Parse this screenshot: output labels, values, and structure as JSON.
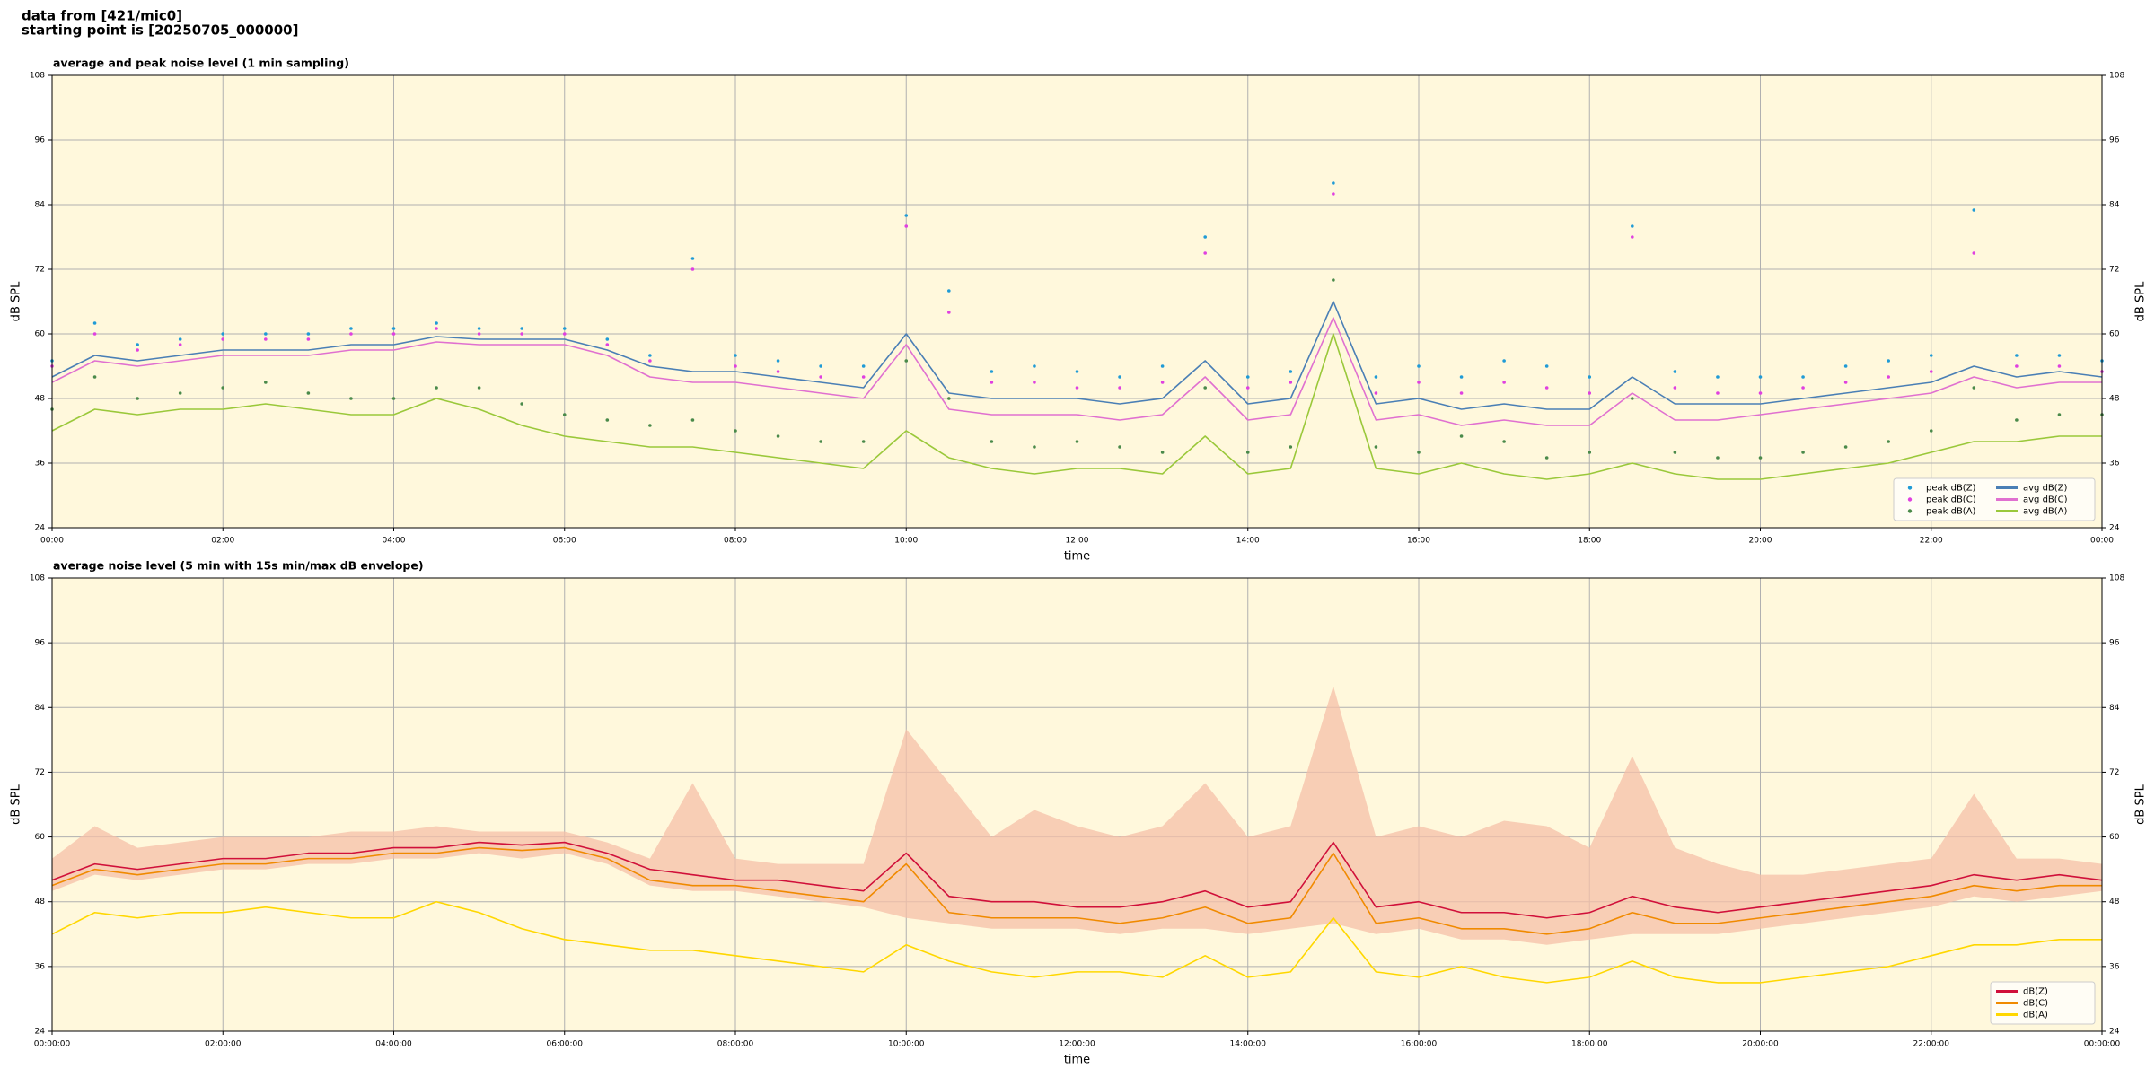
{
  "header": {
    "lines": [
      "data from [421/mic0]",
      "starting point is [20250705_000000]"
    ]
  },
  "chart_data": [
    {
      "type": "line",
      "title": "average and peak noise level (1 min sampling)",
      "xlabel": "time",
      "ylabel": "dB SPL",
      "x": [
        0,
        0.5,
        1,
        1.5,
        2,
        2.5,
        3,
        3.5,
        4,
        4.5,
        5,
        5.5,
        6,
        6.5,
        7,
        7.5,
        8,
        8.5,
        9,
        9.5,
        10,
        10.5,
        11,
        11.5,
        12,
        12.5,
        13,
        13.5,
        14,
        14.5,
        15,
        15.5,
        16,
        16.5,
        17,
        17.5,
        18,
        18.5,
        19,
        19.5,
        20,
        20.5,
        21,
        21.5,
        22,
        22.5,
        23,
        23.5,
        24
      ],
      "xlim": [
        0,
        24
      ],
      "xticks": [
        {
          "value": 0,
          "label": "00:00"
        },
        {
          "value": 2,
          "label": "02:00"
        },
        {
          "value": 4,
          "label": "04:00"
        },
        {
          "value": 6,
          "label": "06:00"
        },
        {
          "value": 8,
          "label": "08:00"
        },
        {
          "value": 10,
          "label": "10:00"
        },
        {
          "value": 12,
          "label": "12:00"
        },
        {
          "value": 14,
          "label": "14:00"
        },
        {
          "value": 16,
          "label": "16:00"
        },
        {
          "value": 18,
          "label": "18:00"
        },
        {
          "value": 20,
          "label": "20:00"
        },
        {
          "value": 22,
          "label": "22:00"
        },
        {
          "value": 24,
          "label": "00:00"
        }
      ],
      "ylim": [
        24,
        108
      ],
      "yticks": [
        24,
        36,
        48,
        60,
        72,
        84,
        96,
        108
      ],
      "grid": true,
      "legend": "lower right",
      "legend_columns": 2,
      "series": [
        {
          "name": "peak dB(Z)",
          "kind": "scatter",
          "color": "#1f9bd6",
          "values": [
            55,
            62,
            58,
            59,
            60,
            60,
            60,
            61,
            61,
            62,
            61,
            61,
            61,
            59,
            56,
            74,
            56,
            55,
            54,
            54,
            82,
            68,
            53,
            54,
            53,
            52,
            54,
            78,
            52,
            53,
            88,
            52,
            54,
            52,
            55,
            54,
            52,
            80,
            53,
            52,
            52,
            52,
            54,
            55,
            56,
            83,
            56,
            56,
            55
          ]
        },
        {
          "name": "peak dB(C)",
          "kind": "scatter",
          "color": "#e040e0",
          "values": [
            54,
            60,
            57,
            58,
            59,
            59,
            59,
            60,
            60,
            61,
            60,
            60,
            60,
            58,
            55,
            72,
            54,
            53,
            52,
            52,
            80,
            64,
            51,
            51,
            50,
            50,
            51,
            75,
            50,
            51,
            86,
            49,
            51,
            49,
            51,
            50,
            49,
            78,
            50,
            49,
            49,
            50,
            51,
            52,
            53,
            75,
            54,
            54,
            53
          ]
        },
        {
          "name": "peak dB(A)",
          "kind": "scatter",
          "color": "#4a8a4a",
          "values": [
            46,
            52,
            48,
            49,
            50,
            51,
            49,
            48,
            48,
            50,
            50,
            47,
            45,
            44,
            43,
            44,
            42,
            41,
            40,
            40,
            55,
            48,
            40,
            39,
            40,
            39,
            38,
            50,
            38,
            39,
            70,
            39,
            38,
            41,
            40,
            37,
            38,
            48,
            38,
            37,
            37,
            38,
            39,
            40,
            42,
            50,
            44,
            45,
            45
          ]
        },
        {
          "name": "avg dB(Z)",
          "kind": "line",
          "color": "#4a7fb5",
          "values": [
            52,
            56,
            55,
            56,
            57,
            57,
            57,
            58,
            58,
            59.5,
            59,
            59,
            59,
            57,
            54,
            53,
            53,
            52,
            51,
            50,
            60,
            49,
            48,
            48,
            48,
            47,
            48,
            55,
            47,
            48,
            66,
            47,
            48,
            46,
            47,
            46,
            46,
            52,
            47,
            47,
            47,
            48,
            49,
            50,
            51,
            54,
            52,
            53,
            52
          ]
        },
        {
          "name": "avg dB(C)",
          "kind": "line",
          "color": "#e070d0",
          "values": [
            51,
            55,
            54,
            55,
            56,
            56,
            56,
            57,
            57,
            58.5,
            58,
            58,
            58,
            56,
            52,
            51,
            51,
            50,
            49,
            48,
            58,
            46,
            45,
            45,
            45,
            44,
            45,
            52,
            44,
            45,
            63,
            44,
            45,
            43,
            44,
            43,
            43,
            49,
            44,
            44,
            45,
            46,
            47,
            48,
            49,
            52,
            50,
            51,
            51
          ]
        },
        {
          "name": "avg dB(A)",
          "kind": "line",
          "color": "#9ac83a",
          "values": [
            42,
            46,
            45,
            46,
            46,
            47,
            46,
            45,
            45,
            48,
            46,
            43,
            41,
            40,
            39,
            39,
            38,
            37,
            36,
            35,
            42,
            37,
            35,
            34,
            35,
            35,
            34,
            41,
            34,
            35,
            60,
            35,
            34,
            36,
            34,
            33,
            34,
            36,
            34,
            33,
            33,
            34,
            35,
            36,
            38,
            40,
            40,
            41,
            41
          ]
        }
      ]
    },
    {
      "type": "line",
      "title": "average noise level (5 min with 15s min/max dB envelope)",
      "xlabel": "time",
      "ylabel": "dB SPL",
      "x": [
        0,
        0.5,
        1,
        1.5,
        2,
        2.5,
        3,
        3.5,
        4,
        4.5,
        5,
        5.5,
        6,
        6.5,
        7,
        7.5,
        8,
        8.5,
        9,
        9.5,
        10,
        10.5,
        11,
        11.5,
        12,
        12.5,
        13,
        13.5,
        14,
        14.5,
        15,
        15.5,
        16,
        16.5,
        17,
        17.5,
        18,
        18.5,
        19,
        19.5,
        20,
        20.5,
        21,
        21.5,
        22,
        22.5,
        23,
        23.5,
        24
      ],
      "xlim": [
        0,
        24
      ],
      "xticks": [
        {
          "value": 0,
          "label": "00:00:00"
        },
        {
          "value": 2,
          "label": "02:00:00"
        },
        {
          "value": 4,
          "label": "04:00:00"
        },
        {
          "value": 6,
          "label": "06:00:00"
        },
        {
          "value": 8,
          "label": "08:00:00"
        },
        {
          "value": 10,
          "label": "10:00:00"
        },
        {
          "value": 12,
          "label": "12:00:00"
        },
        {
          "value": 14,
          "label": "14:00:00"
        },
        {
          "value": 16,
          "label": "16:00:00"
        },
        {
          "value": 18,
          "label": "18:00:00"
        },
        {
          "value": 20,
          "label": "20:00:00"
        },
        {
          "value": 22,
          "label": "22:00:00"
        },
        {
          "value": 24,
          "label": "00:00:00"
        }
      ],
      "ylim": [
        24,
        108
      ],
      "yticks": [
        24,
        36,
        48,
        60,
        72,
        84,
        96,
        108
      ],
      "grid": true,
      "legend": "lower right",
      "legend_columns": 1,
      "envelope": {
        "color": "#f5c0a8",
        "upper": [
          56,
          62,
          58,
          59,
          60,
          60,
          60,
          61,
          61,
          62,
          61,
          61,
          61,
          59,
          56,
          70,
          56,
          55,
          55,
          55,
          80,
          70,
          60,
          65,
          62,
          60,
          62,
          70,
          60,
          62,
          88,
          60,
          62,
          60,
          63,
          62,
          58,
          75,
          58,
          55,
          53,
          53,
          54,
          55,
          56,
          68,
          56,
          56,
          55
        ],
        "lower": [
          50,
          53,
          52,
          53,
          54,
          54,
          55,
          55,
          56,
          56,
          57,
          56,
          57,
          55,
          51,
          50,
          50,
          49,
          48,
          47,
          45,
          44,
          43,
          43,
          43,
          42,
          43,
          43,
          42,
          43,
          44,
          42,
          43,
          41,
          41,
          40,
          41,
          42,
          42,
          42,
          43,
          44,
          45,
          46,
          47,
          49,
          48,
          49,
          50
        ]
      },
      "series": [
        {
          "name": "dB(Z)",
          "kind": "line",
          "color": "#d0103a",
          "values": [
            52,
            55,
            54,
            55,
            56,
            56,
            57,
            57,
            58,
            58,
            59,
            58.5,
            59,
            57,
            54,
            53,
            52,
            52,
            51,
            50,
            57,
            49,
            48,
            48,
            47,
            47,
            48,
            50,
            47,
            48,
            59,
            47,
            48,
            46,
            46,
            45,
            46,
            49,
            47,
            46,
            47,
            48,
            49,
            50,
            51,
            53,
            52,
            53,
            52
          ]
        },
        {
          "name": "dB(C)",
          "kind": "line",
          "color": "#f08a00",
          "values": [
            51,
            54,
            53,
            54,
            55,
            55,
            56,
            56,
            57,
            57,
            58,
            57.5,
            58,
            56,
            52,
            51,
            51,
            50,
            49,
            48,
            55,
            46,
            45,
            45,
            45,
            44,
            45,
            47,
            44,
            45,
            57,
            44,
            45,
            43,
            43,
            42,
            43,
            46,
            44,
            44,
            45,
            46,
            47,
            48,
            49,
            51,
            50,
            51,
            51
          ]
        },
        {
          "name": "dB(A)",
          "kind": "line",
          "color": "#ffd700",
          "values": [
            42,
            46,
            45,
            46,
            46,
            47,
            46,
            45,
            45,
            48,
            46,
            43,
            41,
            40,
            39,
            39,
            38,
            37,
            36,
            35,
            40,
            37,
            35,
            34,
            35,
            35,
            34,
            38,
            34,
            35,
            45,
            35,
            34,
            36,
            34,
            33,
            34,
            37,
            34,
            33,
            33,
            34,
            35,
            36,
            38,
            40,
            40,
            41,
            41
          ]
        }
      ]
    }
  ]
}
